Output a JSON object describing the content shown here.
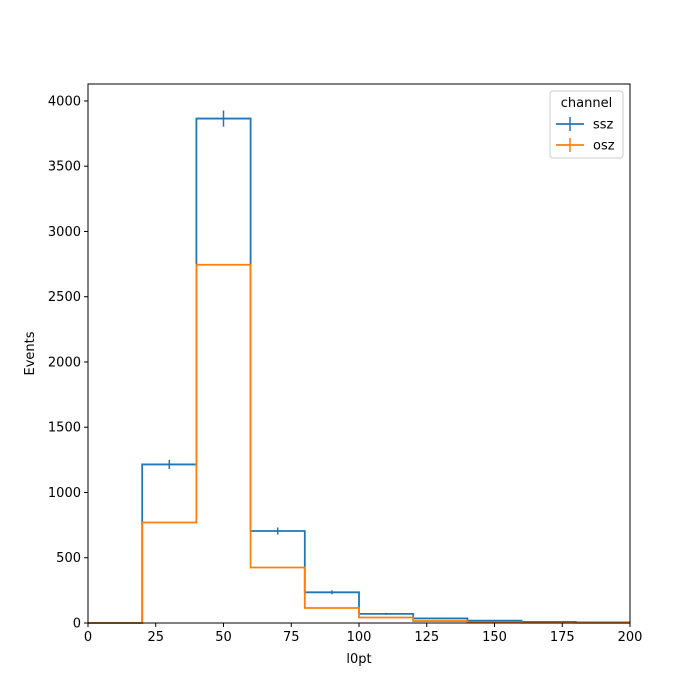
{
  "chart_data": {
    "type": "histogram",
    "title": "",
    "xlabel": "l0pt",
    "ylabel": "Events",
    "xlim": [
      0,
      200
    ],
    "ylim": [
      0,
      4130
    ],
    "grid": false,
    "x_ticks": [
      0,
      25,
      50,
      75,
      100,
      125,
      150,
      175,
      200
    ],
    "y_ticks": [
      0,
      500,
      1000,
      1500,
      2000,
      2500,
      3000,
      3500,
      4000
    ],
    "bin_edges": [
      0,
      20,
      40,
      60,
      80,
      100,
      120,
      140,
      160,
      180,
      200
    ],
    "legend": {
      "title": "channel",
      "placement": "top-right"
    },
    "series": [
      {
        "name": "ssz",
        "color": "#1f77b4",
        "values": [
          0,
          1215,
          3865,
          705,
          235,
          70,
          35,
          18,
          8,
          5
        ],
        "errors": [
          0,
          35,
          62,
          27,
          15,
          8,
          6,
          4,
          3,
          2
        ]
      },
      {
        "name": "osz",
        "color": "#ff7f0e",
        "values": [
          0,
          770,
          2745,
          425,
          115,
          42,
          15,
          5,
          2,
          1
        ],
        "errors": [
          0,
          0,
          0,
          0,
          0,
          0,
          0,
          0,
          0,
          0
        ]
      }
    ]
  }
}
